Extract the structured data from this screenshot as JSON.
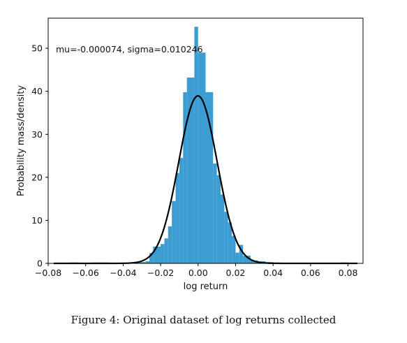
{
  "caption": "Figure 4: Original dataset of log returns collected",
  "chart_data": {
    "type": "histogram",
    "annotation": "mu=-0.000074, sigma=0.010246",
    "xlabel": "log return",
    "ylabel": "Probability mass/density",
    "xlim": [
      -0.08,
      0.088
    ],
    "ylim": [
      0,
      57
    ],
    "xticks": [
      -0.08,
      -0.06,
      -0.04,
      -0.02,
      0.0,
      0.02,
      0.04,
      0.06,
      0.08
    ],
    "xtick_labels": [
      "−0.08",
      "−0.06",
      "−0.04",
      "−0.02",
      "0.00",
      "0.02",
      "0.04",
      "0.06",
      "0.08"
    ],
    "yticks": [
      0,
      10,
      20,
      30,
      40,
      50
    ],
    "ytick_labels": [
      "0",
      "10",
      "20",
      "30",
      "40",
      "50"
    ],
    "bar_color": "#3b9dd1",
    "curve_color": "#000000",
    "bin_width": 0.004,
    "bins": [
      {
        "x0": -0.076,
        "h": 0.1
      },
      {
        "x0": -0.072,
        "h": 0.1
      },
      {
        "x0": -0.068,
        "h": 0.2
      },
      {
        "x0": -0.056,
        "h": 0.2
      },
      {
        "x0": -0.052,
        "h": 0.2
      },
      {
        "x0": -0.044,
        "h": 0.1
      },
      {
        "x0": -0.032,
        "h": 0.3
      },
      {
        "x0": -0.028,
        "h": 0.5
      },
      {
        "x0": -0.026,
        "h": 2.4
      },
      {
        "x0": -0.024,
        "h": 3.9
      },
      {
        "x0": -0.02,
        "h": 4.5
      },
      {
        "x0": -0.018,
        "h": 5.8
      },
      {
        "x0": -0.016,
        "h": 8.6
      },
      {
        "x0": -0.014,
        "h": 14.5
      },
      {
        "x0": -0.012,
        "h": 21.0
      },
      {
        "x0": -0.01,
        "h": 24.5
      },
      {
        "x0": -0.008,
        "h": 39.8
      },
      {
        "x0": -0.006,
        "h": 43.2
      },
      {
        "x0": -0.002,
        "h": 55.0
      },
      {
        "x0": 0.0,
        "h": 49.0
      },
      {
        "x0": 0.004,
        "h": 39.8
      },
      {
        "x0": 0.008,
        "h": 23.2
      },
      {
        "x0": 0.01,
        "h": 20.5
      },
      {
        "x0": 0.012,
        "h": 16.0
      },
      {
        "x0": 0.014,
        "h": 12.0
      },
      {
        "x0": 0.016,
        "h": 9.5
      },
      {
        "x0": 0.018,
        "h": 6.4
      },
      {
        "x0": 0.02,
        "h": 2.5
      },
      {
        "x0": 0.022,
        "h": 4.3
      },
      {
        "x0": 0.024,
        "h": 1.8
      },
      {
        "x0": 0.028,
        "h": 0.7
      },
      {
        "x0": 0.032,
        "h": 0.5
      },
      {
        "x0": 0.036,
        "h": 0.3
      },
      {
        "x0": 0.04,
        "h": 0.2
      },
      {
        "x0": 0.044,
        "h": 0.1
      },
      {
        "x0": 0.076,
        "h": 0.2
      },
      {
        "x0": 0.08,
        "h": 0.1
      }
    ],
    "pdf": {
      "mu": -7.4e-05,
      "sigma": 0.010246
    }
  }
}
